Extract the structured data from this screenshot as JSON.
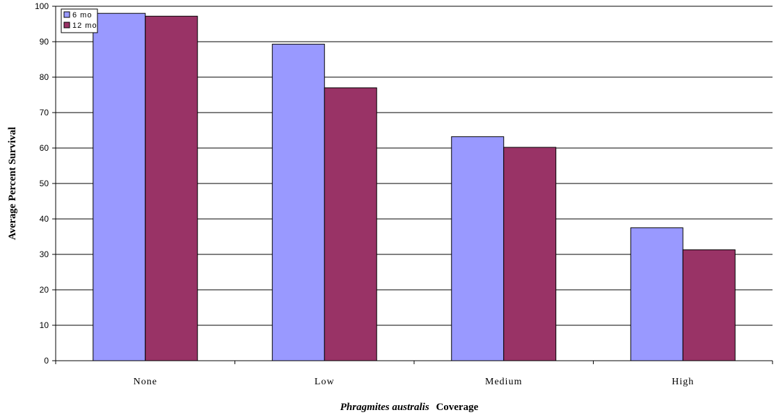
{
  "chart_data": {
    "type": "bar",
    "categories": [
      "None",
      "Low",
      "Medium",
      "High"
    ],
    "series": [
      {
        "name": "6 mo",
        "values": [
          98,
          89.3,
          63.2,
          37.5
        ],
        "color": "#9999FF"
      },
      {
        "name": "12 mo",
        "values": [
          97.2,
          77,
          60.2,
          31.3
        ],
        "color": "#993366"
      }
    ],
    "ylabel": "Average Percent Survival",
    "xlabel_italic": "Phragmites australis",
    "xlabel_rest": "Coverage",
    "ylim": [
      0,
      100
    ],
    "yticks": [
      0,
      10,
      20,
      30,
      40,
      50,
      60,
      70,
      80,
      90,
      100
    ],
    "grid": true,
    "legend_position": "top-left"
  }
}
